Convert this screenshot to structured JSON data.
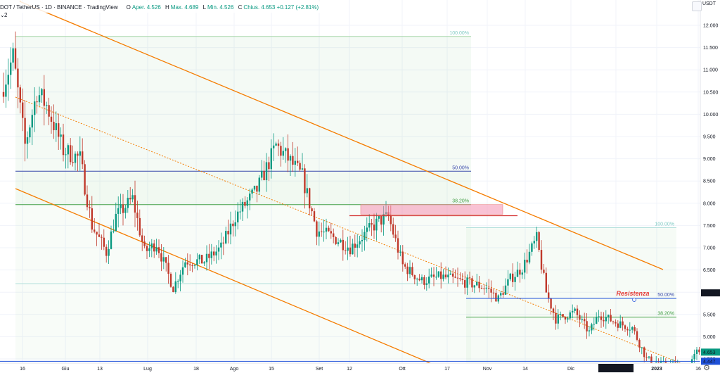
{
  "legend": {
    "symbol": "DOT / TetherUS · 1D · BINANCE · TradingView",
    "open_label": "O",
    "open": "Aper. 4.526",
    "high_label": "H",
    "high": "Max. 4.689",
    "low_label": "L",
    "low": "Min. 4.526",
    "close_label": "C",
    "close": "Chius. 4.653 +0.127 (+2.81%)",
    "indicator": "2"
  },
  "currency": "USDT",
  "colors": {
    "up": "#089981",
    "down": "#c0392b",
    "channel": "#f57c00",
    "blue_line": "#1e50d8",
    "resistance_text": "#e53935"
  },
  "chart_data": {
    "type": "candlestick",
    "ylim": [
      3.9,
      12.15
    ],
    "y_ticks": [
      "12.000",
      "11.500",
      "11.000",
      "10.500",
      "10.000",
      "9.500",
      "9.000",
      "8.500",
      "8.000",
      "7.500",
      "7.000",
      "6.500",
      "6.000",
      "5.500",
      "5.000",
      "4.500",
      "4.000"
    ],
    "x_ticks": [
      "16",
      "Giu",
      "13",
      "Lug",
      "18",
      "Ago",
      "15",
      "Set",
      "12",
      "Ott",
      "17",
      "Nov",
      "14",
      "Dic",
      "sab 17 Dic '22",
      "2023",
      "16"
    ],
    "price_tags": [
      {
        "value": 5.985,
        "label": "5.985",
        "color": "#131722"
      },
      {
        "value": 4.653,
        "label": "4.653",
        "color": "#089981"
      },
      {
        "value": 4.447,
        "label": "4.447",
        "color": "#1e50d8"
      },
      {
        "value": 4.0,
        "label": "4.000",
        "color": "#1e50d8"
      }
    ],
    "highlight_tick": "sab 17 Dic '22",
    "fib_levels": [
      {
        "label": "100.00%",
        "value": 11.75
      },
      {
        "label": "50.00%",
        "value": 8.72
      },
      {
        "label": "38.20%",
        "value": 7.97
      },
      {
        "label": "100.00%",
        "value": 7.45
      },
      {
        "label": "50.00%",
        "value": 5.86
      },
      {
        "label": "38.20%",
        "value": 5.44
      },
      {
        "label": "0.00%",
        "value": 4.29
      }
    ],
    "annotations": [
      "Resistenza"
    ],
    "horizontal_lines": [
      4.447,
      4.0
    ],
    "resistance_zone": [
      7.72,
      7.97
    ],
    "last_close": 4.653
  }
}
